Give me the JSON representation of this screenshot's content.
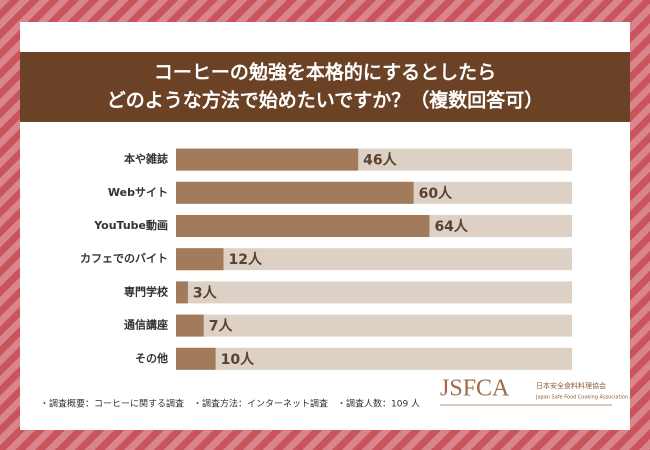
{
  "chart_data": {
    "type": "bar",
    "orientation": "horizontal",
    "title": [
      "コーヒーの勉強を本格的にするとしたら",
      "どのような方法で始めたいですか？（複数回答可）"
    ],
    "categories": [
      "本や雑誌",
      "Webサイト",
      "YouTube動画",
      "カフェでのバイト",
      "専門学校",
      "通信講座",
      "その他"
    ],
    "values": [
      46,
      60,
      64,
      12,
      3,
      7,
      10
    ],
    "value_labels": [
      "46人",
      "60人",
      "64人",
      "12人",
      "3人",
      "7人",
      "10人"
    ],
    "color": "#a27b5c",
    "track_color": "#ddd0c4",
    "xlim": [
      0,
      100
    ],
    "annotations": [
      "・調査概要：コーヒーに関する調査　・調査方法：インターネット調査　・調査人数：109 人"
    ],
    "logo": {
      "mark": "JSFCA",
      "name": "日本安全食料料理協会",
      "name_en": "Japan Safe Food Cooking Association"
    }
  }
}
